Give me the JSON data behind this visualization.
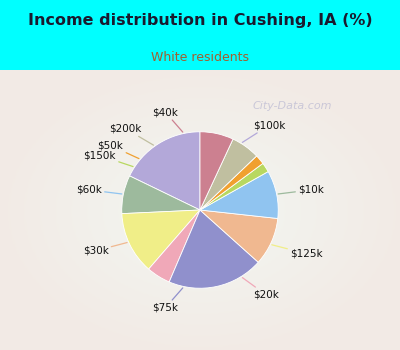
{
  "title": "Income distribution in Cushing, IA (%)",
  "subtitle": "White residents",
  "title_color": "#1a1a2e",
  "subtitle_color": "#a06030",
  "bg_color": "#00ffff",
  "watermark": "City-Data.com",
  "labels": [
    "$100k",
    "$10k",
    "$125k",
    "$20k",
    "$75k",
    "$30k",
    "$60k",
    "$150k",
    "$50k",
    "$200k",
    "$40k"
  ],
  "values": [
    18,
    8,
    13,
    5,
    20,
    10,
    10,
    2,
    2,
    6,
    7
  ],
  "colors": [
    "#b3a8d9",
    "#9dba9d",
    "#f0ee88",
    "#f0a8b8",
    "#9090cc",
    "#f0b890",
    "#90c4f0",
    "#b8d860",
    "#f0a030",
    "#c0bfa0",
    "#cc8090"
  ],
  "start_angle": 90,
  "label_r": 1.28,
  "line_r": 1.02
}
